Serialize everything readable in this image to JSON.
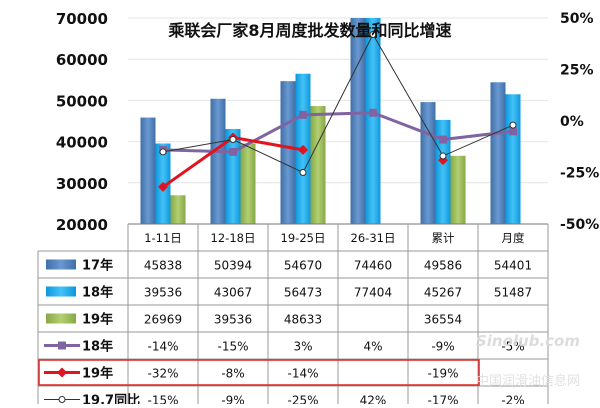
{
  "title": "乘联会厂家8月周度批发数量和同比增速",
  "chart_data": {
    "type": "bar",
    "title": "乘联会厂家8月周度批发数量和同比增速",
    "categories": [
      "1-11日",
      "12-18日",
      "19-25日",
      "26-31日",
      "累计",
      "月度"
    ],
    "left_axis": {
      "min": 20000,
      "max": 70000,
      "ticks": [
        70000,
        60000,
        50000,
        40000,
        30000,
        20000
      ],
      "tick_labels": [
        "70000",
        "60000",
        "50000",
        "40000",
        "30000",
        "20000"
      ]
    },
    "right_axis": {
      "min": -0.5,
      "max": 0.5,
      "ticks": [
        0.5,
        0.25,
        0,
        -0.25,
        -0.5
      ],
      "tick_labels": [
        "50%",
        "25%",
        "0%",
        "-25%",
        "-50%"
      ]
    },
    "bar_series": [
      {
        "name": "17年",
        "color": "#4f81bd",
        "values": [
          45838,
          50394,
          54670,
          74460,
          49586,
          54401
        ],
        "labels": [
          "45838",
          "50394",
          "54670",
          "74460",
          "49586",
          "54401"
        ]
      },
      {
        "name": "18年",
        "color": "#1ea7e8",
        "values": [
          39536,
          43067,
          56473,
          77404,
          45267,
          51487
        ],
        "labels": [
          "39536",
          "43067",
          "56473",
          "77404",
          "45267",
          "51487"
        ]
      },
      {
        "name": "19年",
        "color": "#9bbb59",
        "values": [
          26969,
          39536,
          48633,
          null,
          36554,
          null
        ],
        "labels": [
          "26969",
          "39536",
          "48633",
          "",
          "36554",
          ""
        ]
      }
    ],
    "line_series": [
      {
        "name": "18年",
        "color": "#8064a2",
        "marker": "square",
        "values": [
          -0.14,
          -0.15,
          0.03,
          0.04,
          -0.09,
          -0.05
        ],
        "labels": [
          "-14%",
          "-15%",
          "3%",
          "4%",
          "-9%",
          "-5%"
        ]
      },
      {
        "name": "19年",
        "color": "#e0141e",
        "marker": "diamond",
        "values": [
          -0.32,
          -0.08,
          -0.14,
          null,
          -0.19,
          null
        ],
        "labels": [
          "-32%",
          "-8%",
          "-14%",
          "",
          "-19%",
          ""
        ]
      },
      {
        "name": "19.7同比",
        "color": "#333333",
        "marker": "circle",
        "values": [
          -0.15,
          -0.09,
          -0.25,
          0.42,
          -0.17,
          -0.02
        ],
        "labels": [
          "-15%",
          "-9%",
          "-25%",
          "42%",
          "-17%",
          "-2%"
        ]
      }
    ],
    "grid": true
  },
  "watermark": {
    "text": "中国润滑油信息网",
    "logo": "Sinolub.com"
  }
}
